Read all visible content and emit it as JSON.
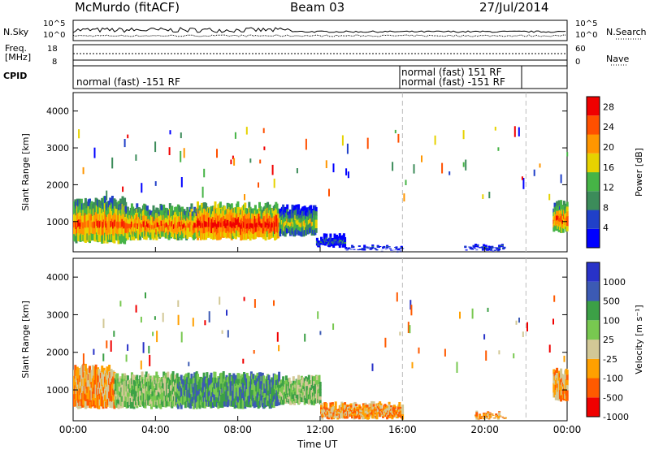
{
  "header": {
    "station": "McMurdo (fitACF)",
    "beam": "Beam 03",
    "date": "27/Jul/2014"
  },
  "top_panel": {
    "left_label": "N.Sky",
    "right_label": "N.Search",
    "ticks_left": [
      "10^5",
      "10^0"
    ],
    "ticks_right": [
      "10^5",
      "10^0"
    ]
  },
  "freq_panel": {
    "left_label_line1": "Freq.",
    "left_label_line2": "[MHz]",
    "right_label": "Nave",
    "ticks_left": [
      "18",
      "8"
    ],
    "ticks_right": [
      "60",
      "0"
    ]
  },
  "cpid_panel": {
    "label": "CPID",
    "segments": [
      {
        "start_hour": 0,
        "text": "normal (fast) -151 RF"
      },
      {
        "start_hour": 16,
        "text": "normal (fast) 151 RF"
      },
      {
        "start_hour": 16,
        "text": "normal (fast) -151 RF"
      }
    ]
  },
  "x_axis": {
    "label": "Time UT",
    "ticks": [
      "00:00",
      "04:00",
      "08:00",
      "12:00",
      "16:00",
      "20:00",
      "00:00"
    ],
    "range_hours": [
      0,
      24
    ]
  },
  "colors": {
    "power_scale": [
      "#0000ff",
      "#2040c8",
      "#3c8c5a",
      "#46b446",
      "#e6d200",
      "#ff9600",
      "#ff5000",
      "#f00000"
    ],
    "velocity_scale": [
      "#f00000",
      "#ff5a00",
      "#ffa000",
      "#d2c896",
      "#78c850",
      "#3ca046",
      "#3c5ab4",
      "#2832c8"
    ]
  },
  "chart_data": [
    {
      "type": "heatmap",
      "name": "power",
      "ylabel": "Slant Range [km]",
      "y_ticks": [
        "1000",
        "2000",
        "3000",
        "4000"
      ],
      "ylim": [
        180,
        4500
      ],
      "colorbar_label": "Power [dB]",
      "colorbar_ticks": [
        "4",
        "8",
        "12",
        "16",
        "20",
        "24",
        "28"
      ],
      "clim": [
        0,
        30
      ],
      "bands": [
        {
          "t0": 0.0,
          "t1": 2.5,
          "r_low": 400,
          "r_high": 1700,
          "level": "high"
        },
        {
          "t0": 2.5,
          "t1": 6.0,
          "r_low": 500,
          "r_high": 1500,
          "level": "high"
        },
        {
          "t0": 6.0,
          "t1": 10.0,
          "r_low": 500,
          "r_high": 1550,
          "level": "very high"
        },
        {
          "t0": 10.0,
          "t1": 11.8,
          "r_low": 600,
          "r_high": 1500,
          "level": "moderate"
        },
        {
          "t0": 11.8,
          "t1": 13.2,
          "r_low": 300,
          "r_high": 700,
          "level": "low"
        },
        {
          "t0": 13.2,
          "t1": 16.0,
          "r_low": 220,
          "r_high": 380,
          "level": "low"
        },
        {
          "t0": 19.0,
          "t1": 21.0,
          "r_low": 220,
          "r_high": 400,
          "level": "low"
        },
        {
          "t0": 23.3,
          "t1": 24.0,
          "r_low": 700,
          "r_high": 1600,
          "level": "high"
        }
      ]
    },
    {
      "type": "heatmap",
      "name": "velocity",
      "ylabel": "Slant Range [km]",
      "y_ticks": [
        "1000",
        "2000",
        "3000",
        "4000"
      ],
      "ylim": [
        180,
        4500
      ],
      "colorbar_label": "Velocity [m s⁻¹]",
      "colorbar_ticks": [
        "1000",
        "500",
        "100",
        "25",
        "-25",
        "-100",
        "-500",
        "-1000"
      ],
      "clim": [
        -1000,
        1000
      ],
      "bands": [
        {
          "t0": 0.0,
          "t1": 2.0,
          "r_low": 500,
          "r_high": 1700,
          "level": "negative"
        },
        {
          "t0": 2.0,
          "t1": 5.0,
          "r_low": 500,
          "r_high": 1500,
          "level": "mixed"
        },
        {
          "t0": 5.0,
          "t1": 10.0,
          "r_low": 500,
          "r_high": 1500,
          "level": "positive"
        },
        {
          "t0": 10.0,
          "t1": 12.0,
          "r_low": 600,
          "r_high": 1400,
          "level": "mixed"
        },
        {
          "t0": 12.0,
          "t1": 16.0,
          "r_low": 220,
          "r_high": 700,
          "level": "negative"
        },
        {
          "t0": 19.5,
          "t1": 21.0,
          "r_low": 220,
          "r_high": 450,
          "level": "negative"
        },
        {
          "t0": 23.3,
          "t1": 24.0,
          "r_low": 700,
          "r_high": 1600,
          "level": "negative"
        }
      ]
    }
  ]
}
